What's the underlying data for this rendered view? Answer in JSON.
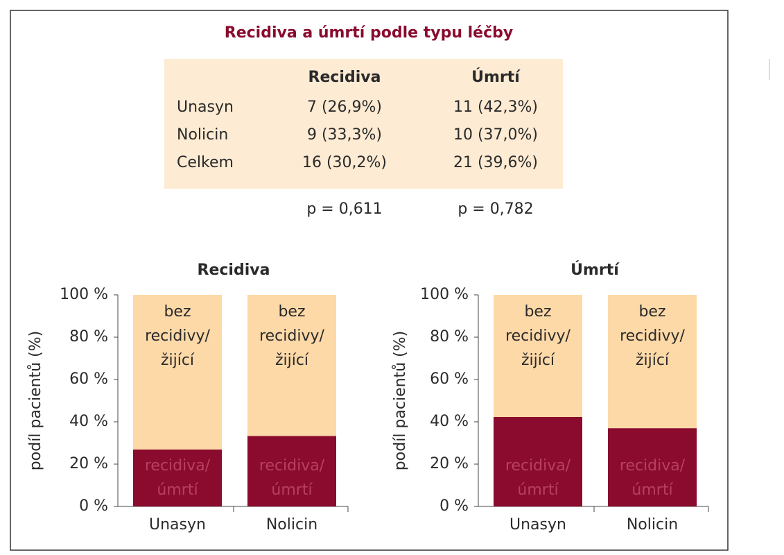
{
  "title": "Recidiva a úmrtí podle typu léčby",
  "table": {
    "header": [
      "Recidiva",
      "Úmrtí"
    ],
    "rows": [
      [
        "Unasyn",
        "7 (26,9%)",
        "11 (42,3%)"
      ],
      [
        "Nolicin",
        "9 (33,3%)",
        "10 (37,0%)"
      ],
      [
        "Celkem",
        "16 (30,2%)",
        "21 (39,6%)"
      ]
    ],
    "p_values": [
      "p = 0,611",
      "p = 0,782"
    ]
  },
  "chart_data": [
    {
      "type": "bar",
      "stacked": true,
      "title": "Recidiva",
      "ylabel": "podíl pacientů (%)",
      "categories": [
        "Unasyn",
        "Nolicin"
      ],
      "series": [
        {
          "name": "recidiva/ úmrtí",
          "color": "#8a0b2e",
          "values": [
            26.9,
            33.3
          ]
        },
        {
          "name": "bez recidivy/ žijící",
          "color": "#fdd9a8",
          "values": [
            73.1,
            66.7
          ]
        }
      ],
      "ylim": [
        0,
        100
      ],
      "yticks": [
        {
          "value": 0,
          "label": "0 %"
        },
        {
          "value": 20,
          "label": "20 %"
        },
        {
          "value": 40,
          "label": "40 %"
        },
        {
          "value": 60,
          "label": "60 %"
        },
        {
          "value": 80,
          "label": "80 %"
        },
        {
          "value": 100,
          "label": "100 %"
        }
      ]
    },
    {
      "type": "bar",
      "stacked": true,
      "title": "Úmrtí",
      "ylabel": "podíl pacientů (%)",
      "categories": [
        "Unasyn",
        "Nolicin"
      ],
      "series": [
        {
          "name": "recidiva/ úmrtí",
          "color": "#8a0b2e",
          "values": [
            42.3,
            37.0
          ]
        },
        {
          "name": "bez recidivy/ žijící",
          "color": "#fdd9a8",
          "values": [
            57.7,
            63.0
          ]
        }
      ],
      "ylim": [
        0,
        100
      ],
      "yticks": [
        {
          "value": 0,
          "label": "0 %"
        },
        {
          "value": 20,
          "label": "20 %"
        },
        {
          "value": 40,
          "label": "40 %"
        },
        {
          "value": 60,
          "label": "60 %"
        },
        {
          "value": 80,
          "label": "80 %"
        },
        {
          "value": 100,
          "label": "100 %"
        }
      ]
    }
  ]
}
